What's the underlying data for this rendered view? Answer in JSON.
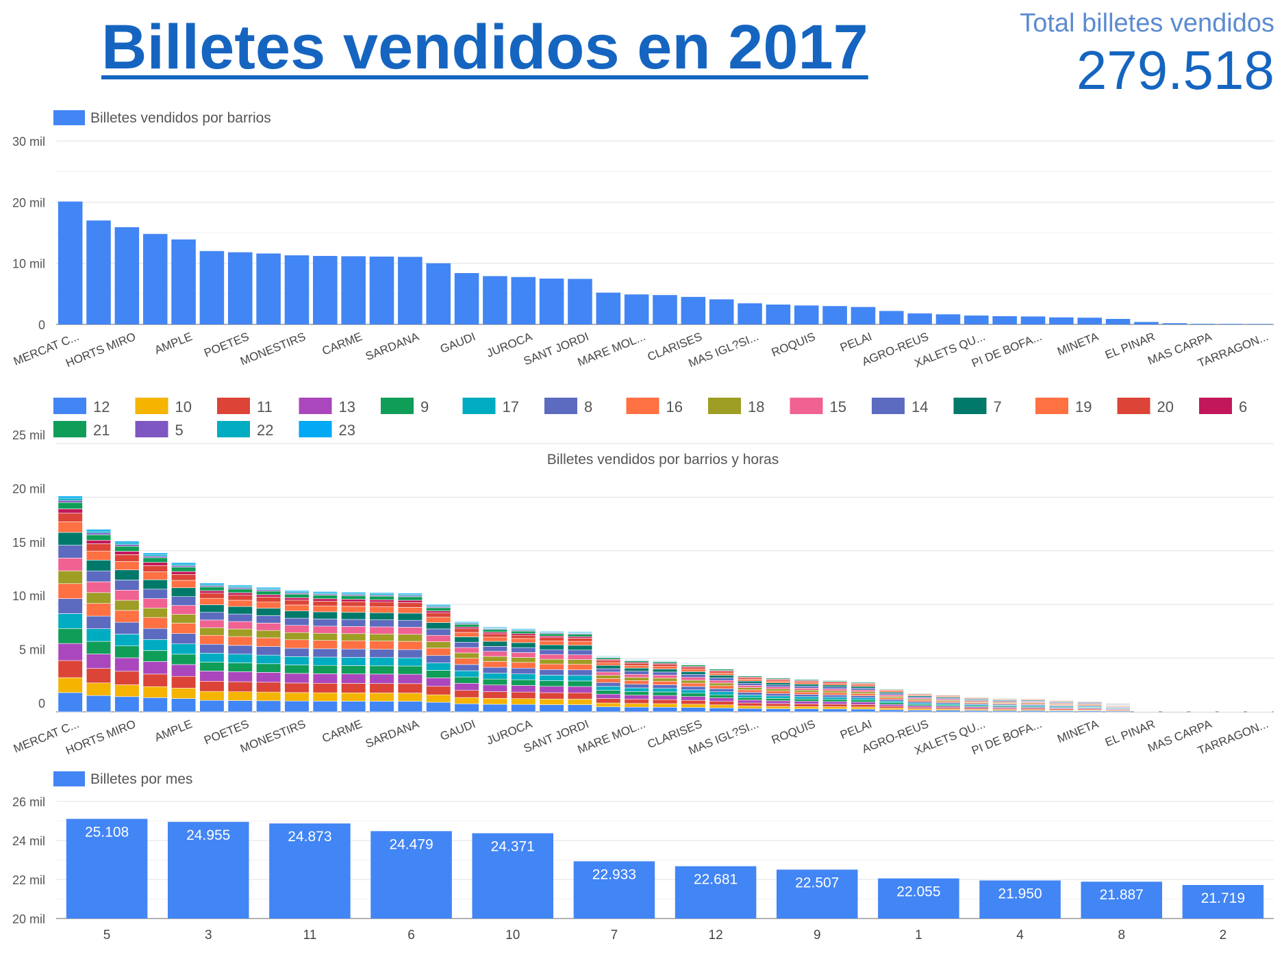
{
  "header": {
    "title": "Billetes vendidos en 2017",
    "kpi_label": "Total billetes vendidos",
    "kpi_value": "279.518"
  },
  "chart_data": [
    {
      "id": "barrios",
      "type": "bar",
      "legend": "Billetes vendidos por barrios",
      "color": "#4285f4",
      "ylim": [
        0,
        30000
      ],
      "yticks": [
        0,
        10000,
        20000,
        30000
      ],
      "ytick_labels": [
        "0",
        "10 mil",
        "20 mil",
        "30 mil"
      ],
      "categories": [
        "MERCAT C...",
        "",
        "HORTS MIRO",
        "",
        "AMPLE",
        "",
        "POETES",
        "",
        "MONESTIRS",
        "",
        "CARME",
        "",
        "SARDANA",
        "",
        "GAUDI",
        "",
        "JUROCA",
        "",
        "SANT JORDI",
        "",
        "MARE MOL...",
        "",
        "CLARISES",
        "",
        "MAS IGL?SI...",
        "",
        "ROQUIS",
        "",
        "PELAI",
        "",
        "AGRO-REUS",
        "",
        "XALETS QU...",
        "",
        "PI DE BOFA...",
        "",
        "MINETA",
        "",
        "EL PINAR",
        "",
        "MAS CARPA",
        "",
        "TARRAGON..."
      ],
      "values": [
        20100,
        17000,
        15900,
        14800,
        13900,
        12000,
        11800,
        11600,
        11300,
        11200,
        11150,
        11100,
        11050,
        10000,
        8400,
        7900,
        7750,
        7500,
        7450,
        5200,
        4900,
        4800,
        4500,
        4100,
        3450,
        3250,
        3100,
        3000,
        2850,
        2200,
        1800,
        1650,
        1450,
        1350,
        1300,
        1150,
        1100,
        900,
        400,
        200,
        100,
        80,
        70
      ]
    },
    {
      "id": "barrios_horas",
      "type": "bar",
      "stacked": true,
      "title": "Billetes vendidos por barrios y horas",
      "ylim": [
        0,
        25000
      ],
      "yticks": [
        0,
        5000,
        10000,
        15000,
        20000,
        25000
      ],
      "ytick_labels": [
        "0",
        "5 mil",
        "10 mil",
        "15 mil",
        "20 mil",
        "25 mil"
      ],
      "categories_ref": "barrios",
      "legend_order": [
        12,
        10,
        11,
        13,
        9,
        17,
        8,
        16,
        18,
        15,
        14,
        7,
        19,
        20,
        6,
        21,
        5,
        22,
        23
      ],
      "series_colors": {
        "12": "#4285f4",
        "10": "#f4b400",
        "11": "#db4437",
        "13": "#ab47bc",
        "9": "#0f9d58",
        "17": "#00acc1",
        "8": "#5c6bc0",
        "16": "#ff7043",
        "18": "#9e9d24",
        "15": "#f06292",
        "14": "#5c6bc0",
        "7": "#00796b",
        "19": "#ff7043",
        "20": "#db4437",
        "6": "#c2185b",
        "21": "#0f9d58",
        "5": "#7e57c2",
        "22": "#00acc1",
        "23": "#03a9f4"
      },
      "stack_order": [
        "12",
        "10",
        "11",
        "13",
        "9",
        "17",
        "8",
        "16",
        "18",
        "15",
        "14",
        "7",
        "19",
        "20",
        "6",
        "21",
        "5",
        "22",
        "23"
      ],
      "stack_weights": [
        9,
        7,
        8,
        8,
        7,
        7,
        7,
        7,
        6,
        6,
        6,
        6,
        5,
        4,
        2,
        3,
        1,
        1,
        1
      ],
      "values": [
        20100,
        17000,
        15900,
        14800,
        13900,
        12000,
        11800,
        11600,
        11300,
        11200,
        11150,
        11100,
        11050,
        10000,
        8400,
        7900,
        7750,
        7500,
        7450,
        5200,
        4900,
        4800,
        4500,
        4100,
        3450,
        3250,
        3100,
        3000,
        2850,
        2200,
        1800,
        1650,
        1450,
        1350,
        1300,
        1150,
        1100,
        900,
        400,
        200,
        100,
        80,
        70
      ]
    },
    {
      "id": "mes",
      "type": "bar",
      "legend": "Billetes por mes",
      "color": "#4285f4",
      "ylim": [
        20000,
        26000
      ],
      "yticks": [
        20000,
        22000,
        24000,
        26000
      ],
      "ytick_labels": [
        "20 mil",
        "22 mil",
        "24 mil",
        "26 mil"
      ],
      "categories": [
        "5",
        "3",
        "11",
        "6",
        "10",
        "7",
        "12",
        "9",
        "1",
        "4",
        "8",
        "2"
      ],
      "values": [
        25108,
        24955,
        24873,
        24479,
        24371,
        22933,
        22681,
        22507,
        22055,
        21950,
        21887,
        21719
      ],
      "value_labels": [
        "25.108",
        "24.955",
        "24.873",
        "24.479",
        "24.371",
        "22.933",
        "22.681",
        "22.507",
        "22.055",
        "21.950",
        "21.887",
        "21.719"
      ]
    }
  ]
}
